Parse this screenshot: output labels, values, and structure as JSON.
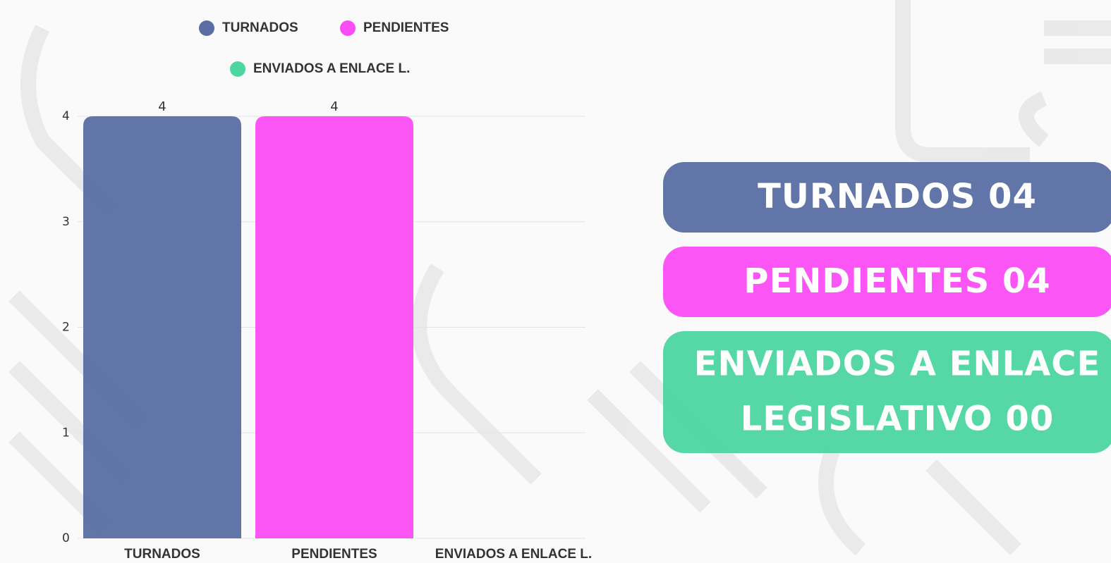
{
  "chart_data": {
    "type": "bar",
    "categories": [
      "TURNADOS",
      "PENDIENTES",
      "ENVIADOS A ENLACE L."
    ],
    "values": [
      4,
      4,
      0
    ],
    "colors": [
      "#5a6ea3",
      "#fb4cf5",
      "#4cd6a0"
    ],
    "ylim": [
      0,
      4
    ],
    "yticks": [
      0,
      1,
      2,
      3,
      4
    ],
    "grid": true,
    "legend": "top"
  },
  "cards": [
    {
      "lines": [
        "TURNADOS  04"
      ]
    },
    {
      "lines": [
        "PENDIENTES 04"
      ]
    },
    {
      "lines": [
        "ENVIADOS A ENLACE",
        "LEGISLATIVO 00"
      ]
    }
  ]
}
